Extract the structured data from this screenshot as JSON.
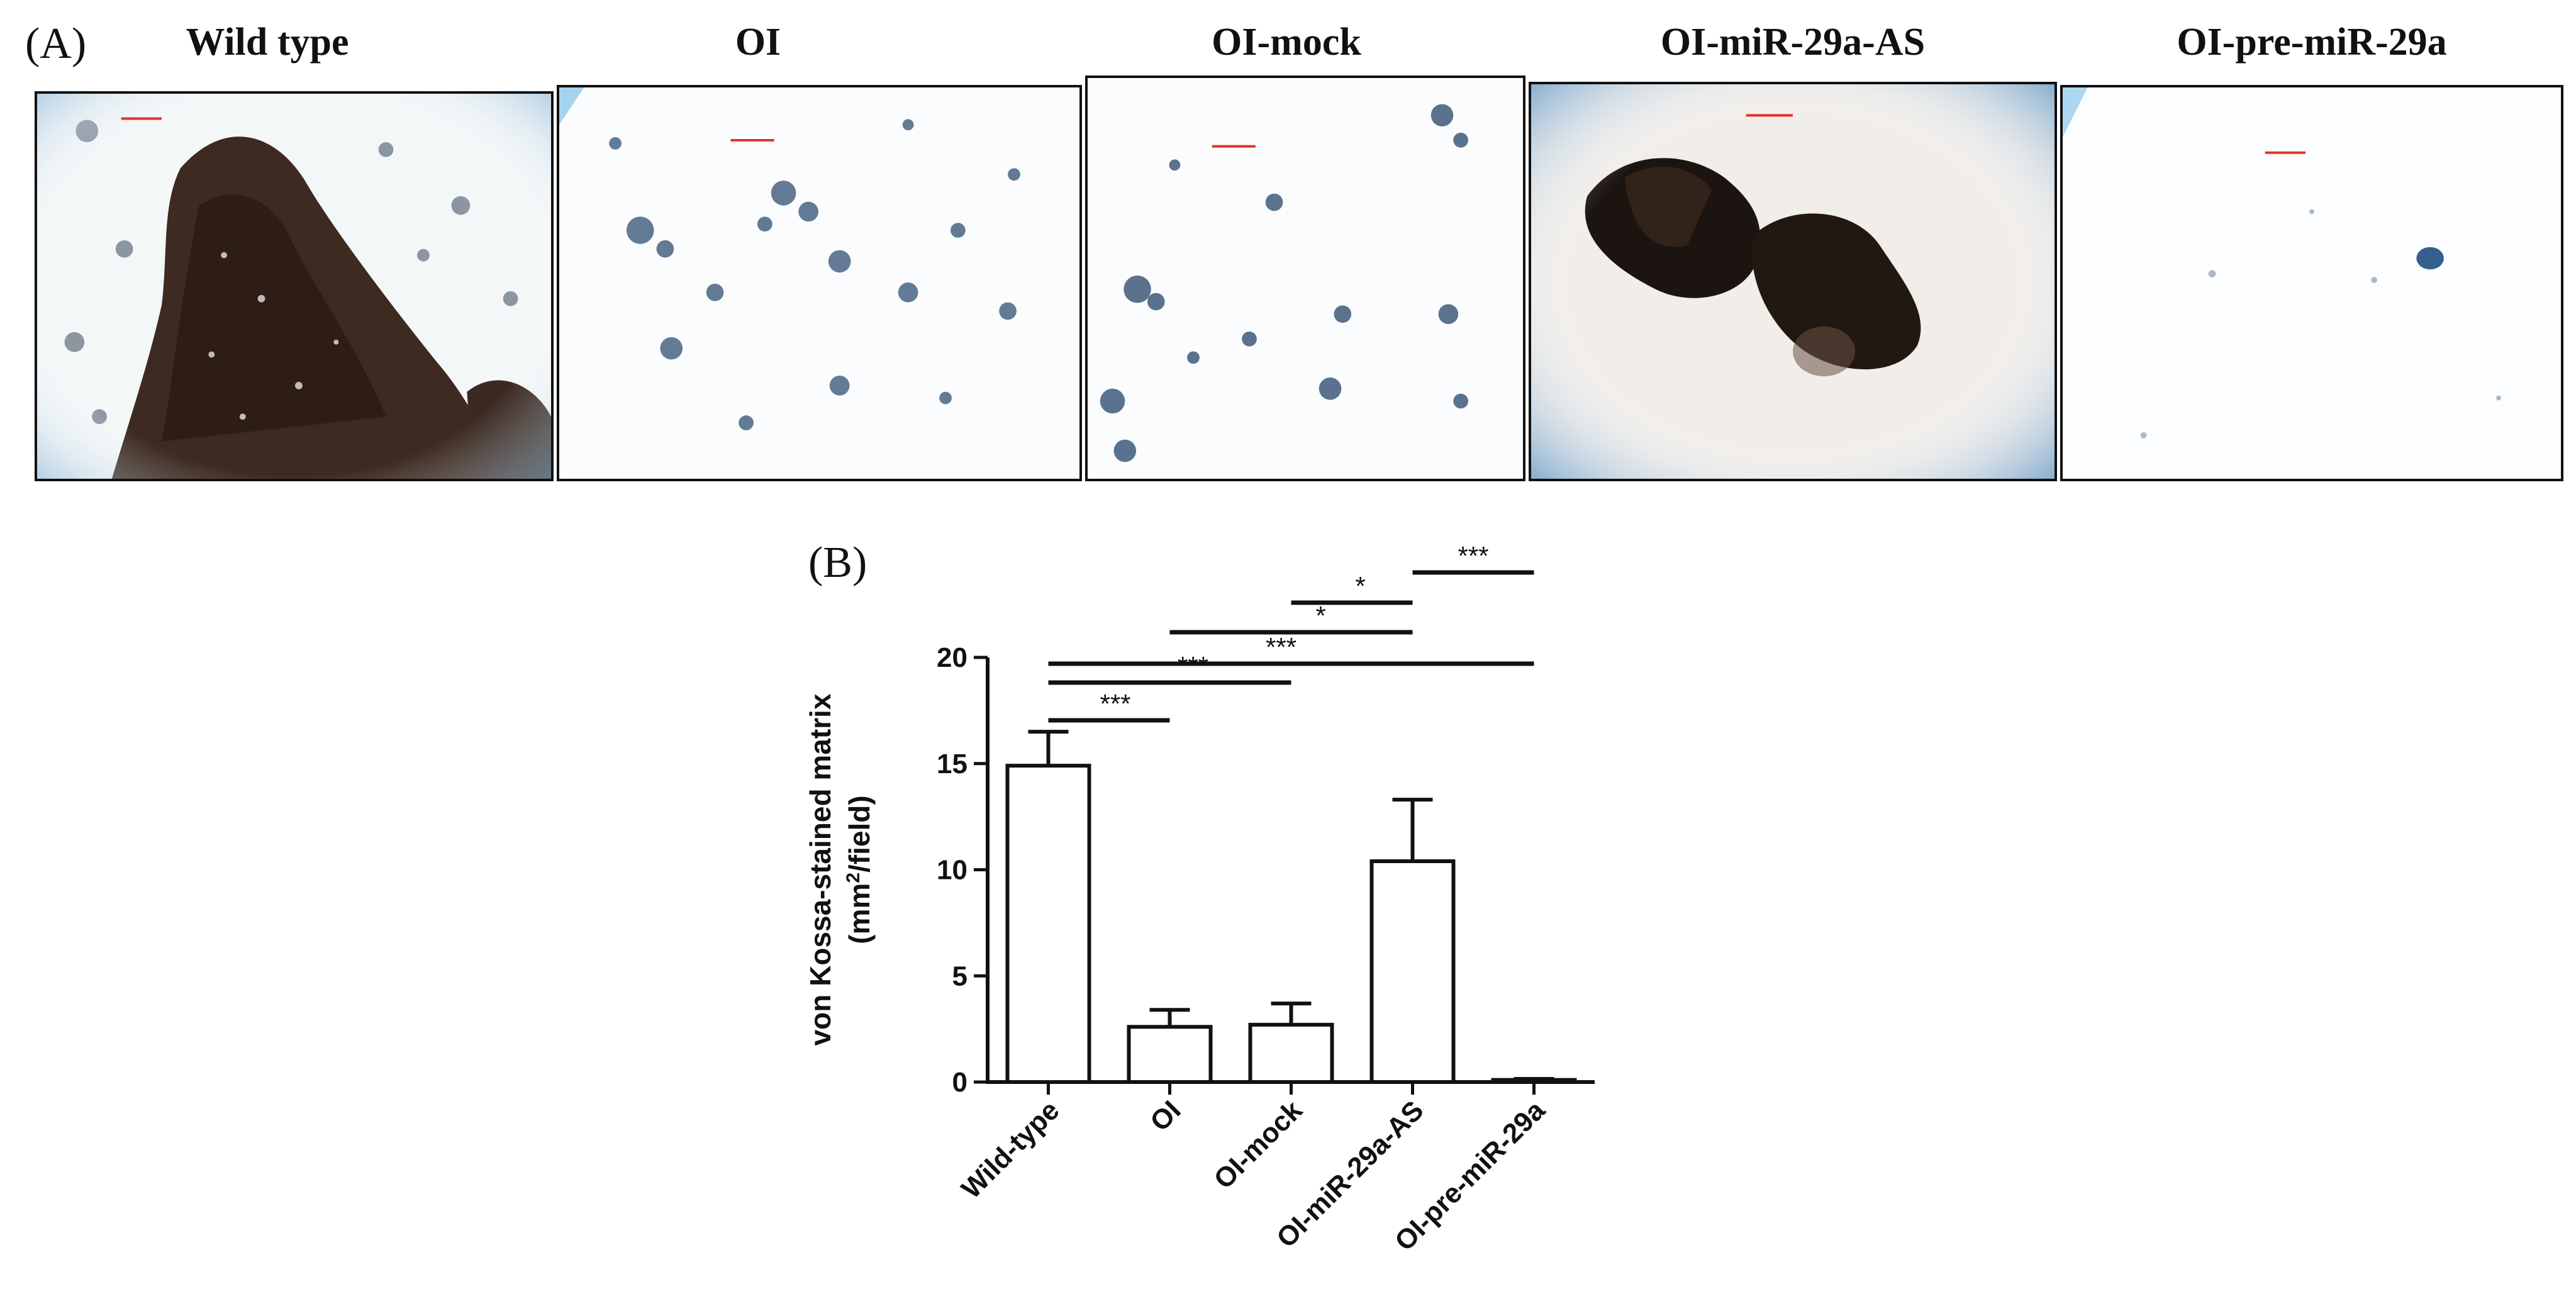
{
  "panel_a": {
    "tag": "(A)",
    "images": [
      {
        "title": "Wild type",
        "stain": "heavy-dark"
      },
      {
        "title": "OI",
        "stain": "sparse-clusters"
      },
      {
        "title": "OI-mock",
        "stain": "sparse-clusters"
      },
      {
        "title": "OI-miR-29a-AS",
        "stain": "dark-blobs"
      },
      {
        "title": "OI-pre-miR-29a",
        "stain": "near-empty"
      }
    ],
    "scale_bar_color": "#e0302a"
  },
  "panel_b": {
    "tag": "(B)"
  },
  "chart_data": {
    "type": "bar",
    "categories": [
      "Wild-type",
      "OI",
      "OI-mock",
      "OI-miR-29a-AS",
      "OI-pre-miR-29a"
    ],
    "values": [
      14.9,
      2.6,
      2.7,
      10.4,
      0.1
    ],
    "errors": [
      1.6,
      0.8,
      1.0,
      2.9,
      0.05
    ],
    "ylabel_line1": "von Kossa-stained matrix",
    "ylabel_line2_pre": "(mm",
    "ylabel_line2_sup": "2",
    "ylabel_line2_post": "/field)",
    "ylim": [
      0,
      20
    ],
    "yticks": [
      0,
      5,
      10,
      15,
      20
    ],
    "bar_fill": "#ffffff",
    "bar_stroke": "#111111",
    "significance": [
      {
        "from": 0,
        "to": 1,
        "label": "***"
      },
      {
        "from": 0,
        "to": 2,
        "label": "***"
      },
      {
        "from": 0,
        "to": 4,
        "label": "***"
      },
      {
        "from": 1,
        "to": 3,
        "label": "*"
      },
      {
        "from": 2,
        "to": 3,
        "label": "*"
      },
      {
        "from": 3,
        "to": 4,
        "label": "***"
      }
    ]
  }
}
